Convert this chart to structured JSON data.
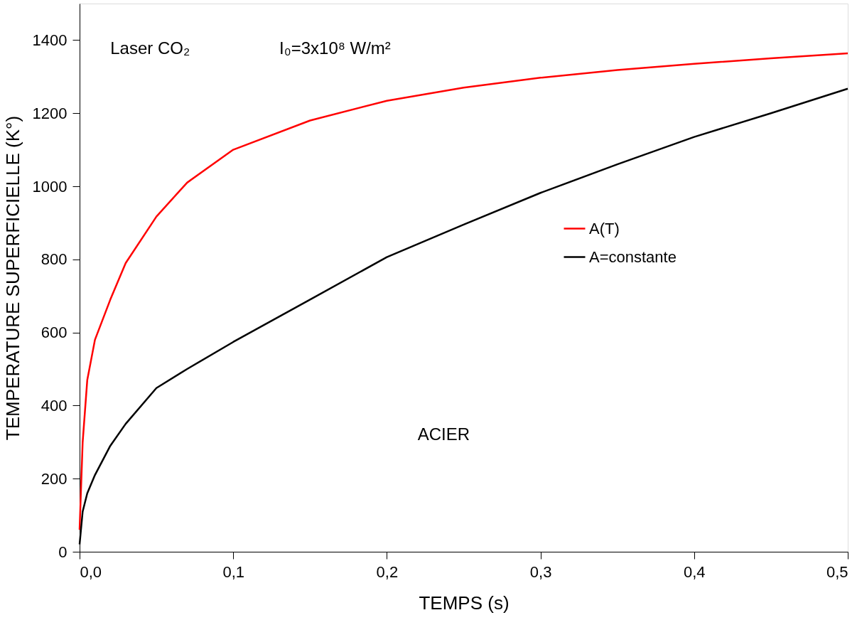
{
  "chart_data": {
    "type": "line",
    "xlabel": "TEMPS (s)",
    "ylabel": "TEMPERATURE SUPERFICIELLE (K°)",
    "annotations": [
      "Laser CO₂",
      "I₀=3x10⁸ W/m²",
      "ACIER"
    ],
    "xlim": [
      0,
      0.5
    ],
    "ylim": [
      0,
      1500
    ],
    "xticks": [
      {
        "value": 0,
        "label": "0,0"
      },
      {
        "value": 0.1,
        "label": "0,1"
      },
      {
        "value": 0.2,
        "label": "0,2"
      },
      {
        "value": 0.3,
        "label": "0,3"
      },
      {
        "value": 0.4,
        "label": "0,4"
      },
      {
        "value": 0.5,
        "label": "0,5"
      }
    ],
    "yticks": [
      0,
      200,
      400,
      600,
      800,
      1000,
      1200,
      1400
    ],
    "legend": "right",
    "grid": false,
    "marker": "none",
    "line_style": "solid",
    "series": [
      {
        "name": "A(T)",
        "color": "#ff0000",
        "x": [
          0,
          0.002,
          0.005,
          0.01,
          0.02,
          0.03,
          0.05,
          0.07,
          0.1,
          0.15,
          0.2,
          0.25,
          0.3,
          0.35,
          0.4,
          0.45,
          0.5
        ],
        "values": [
          60,
          300,
          470,
          580,
          690,
          790,
          917,
          1010,
          1100,
          1180,
          1234,
          1270,
          1297,
          1318,
          1335,
          1350,
          1364
        ]
      },
      {
        "name": "A=constante",
        "color": "#000000",
        "x": [
          0,
          0.002,
          0.005,
          0.01,
          0.02,
          0.03,
          0.05,
          0.07,
          0.1,
          0.15,
          0.2,
          0.25,
          0.3,
          0.35,
          0.4,
          0.45,
          0.5
        ],
        "values": [
          20,
          110,
          160,
          210,
          290,
          350,
          448,
          500,
          574,
          690,
          806,
          895,
          982,
          1060,
          1135,
          1200,
          1267
        ]
      }
    ]
  }
}
